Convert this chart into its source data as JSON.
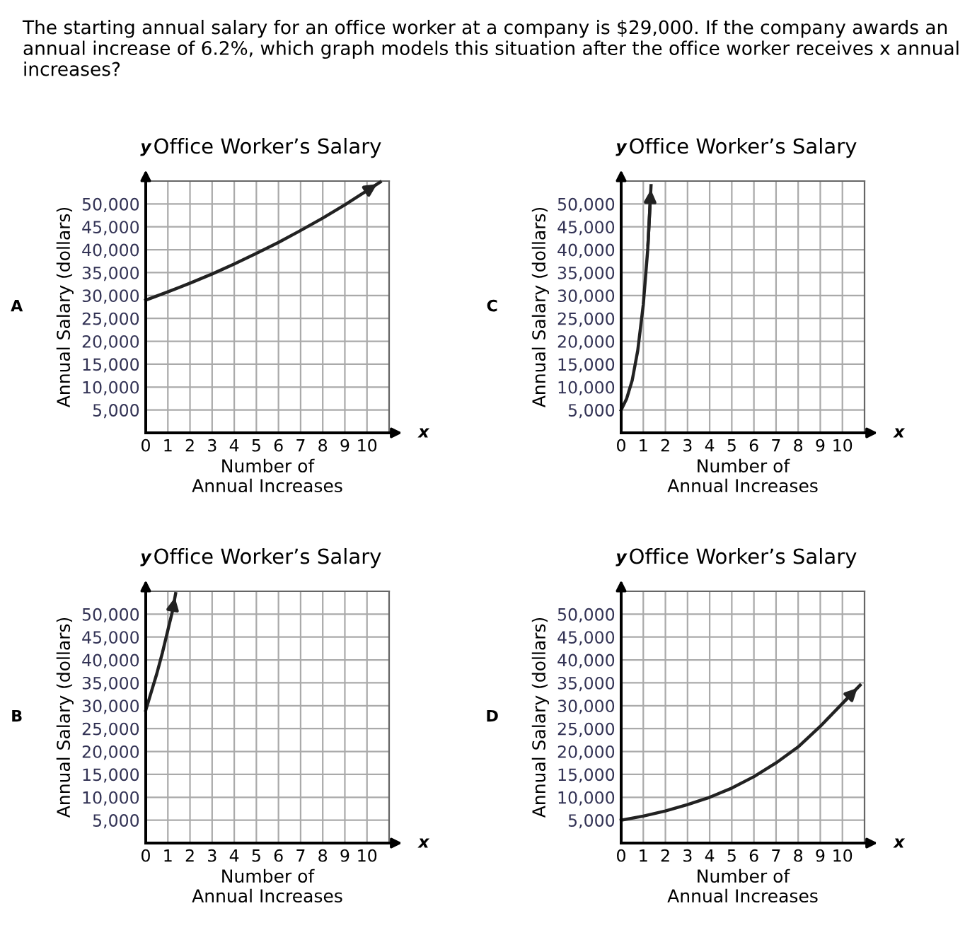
{
  "chart_data": [
    {
      "type": "line",
      "title": "Office Worker’s Salary",
      "xlabel": "Number of\nAnnual Increases",
      "ylabel": "Annual Salary (dollars)",
      "annotations": [
        "The starting annual salary for an office worker at a company is $29,000. If the company awards an annual increase of 6.2%, which graph models this situation after the office worker receives x annual increases?",
        "A",
        "y",
        "x"
      ],
      "series": [
        {
          "color": "#222222",
          "x": [
            0,
            1,
            2,
            3,
            4,
            5,
            6,
            7,
            8,
            9,
            10,
            10.6
          ],
          "values": [
            29000,
            30800,
            32700,
            34700,
            36900,
            39200,
            41600,
            44200,
            46900,
            49800,
            52900,
            54800
          ]
        }
      ],
      "xlim": [
        0,
        11
      ],
      "ylim": [
        0,
        55000
      ],
      "xticks": [
        0,
        1,
        2,
        3,
        4,
        5,
        6,
        7,
        8,
        9,
        10
      ],
      "yticks": [
        {
          "value": 0,
          "label": null
        },
        {
          "value": 5000,
          "label": "5,000"
        },
        {
          "value": 10000,
          "label": "10,000"
        },
        {
          "value": 15000,
          "label": "15,000"
        },
        {
          "value": 20000,
          "label": "20,000"
        },
        {
          "value": 25000,
          "label": "25,000"
        },
        {
          "value": 30000,
          "label": "30,000"
        },
        {
          "value": 35000,
          "label": "35,000"
        },
        {
          "value": 40000,
          "label": "40,000"
        },
        {
          "value": 45000,
          "label": "45,000"
        },
        {
          "value": 50000,
          "label": "50,000"
        }
      ],
      "grid": true,
      "legend": false
    },
    {
      "type": "line",
      "title": "Office Worker’s Salary",
      "xlabel": "Number of\nAnnual Increases",
      "ylabel": "Annual Salary (dollars)",
      "annotations": [
        "C",
        "y",
        "x"
      ],
      "series": [
        {
          "color": "#222222",
          "x": [
            0,
            0.25,
            0.5,
            0.75,
            1.0,
            1.2,
            1.35
          ],
          "values": [
            5000,
            7500,
            11500,
            18000,
            28000,
            40000,
            54000
          ]
        }
      ],
      "xlim": [
        0,
        11
      ],
      "ylim": [
        0,
        55000
      ],
      "xticks": [
        0,
        1,
        2,
        3,
        4,
        5,
        6,
        7,
        8,
        9,
        10
      ],
      "yticks": [
        {
          "value": 0,
          "label": null
        },
        {
          "value": 5000,
          "label": "5,000"
        },
        {
          "value": 10000,
          "label": "10,000"
        },
        {
          "value": 15000,
          "label": "15,000"
        },
        {
          "value": 20000,
          "label": "20,000"
        },
        {
          "value": 25000,
          "label": "25,000"
        },
        {
          "value": 30000,
          "label": "30,000"
        },
        {
          "value": 35000,
          "label": "35,000"
        },
        {
          "value": 40000,
          "label": "40,000"
        },
        {
          "value": 45000,
          "label": "45,000"
        },
        {
          "value": 50000,
          "label": "50,000"
        }
      ],
      "grid": true,
      "legend": false
    },
    {
      "type": "line",
      "title": "Office Worker’s Salary",
      "xlabel": "Number of\nAnnual Increases",
      "ylabel": "Annual Salary (dollars)",
      "annotations": [
        "B",
        "y",
        "x"
      ],
      "series": [
        {
          "color": "#222222",
          "x": [
            0,
            0.25,
            0.5,
            0.75,
            1.0,
            1.2,
            1.35
          ],
          "values": [
            29000,
            33000,
            37000,
            41500,
            46500,
            50500,
            54500
          ]
        }
      ],
      "xlim": [
        0,
        11
      ],
      "ylim": [
        0,
        55000
      ],
      "xticks": [
        0,
        1,
        2,
        3,
        4,
        5,
        6,
        7,
        8,
        9,
        10
      ],
      "yticks": [
        {
          "value": 0,
          "label": null
        },
        {
          "value": 5000,
          "label": "5,000"
        },
        {
          "value": 10000,
          "label": "10,000"
        },
        {
          "value": 15000,
          "label": "15,000"
        },
        {
          "value": 20000,
          "label": "20,000"
        },
        {
          "value": 25000,
          "label": "25,000"
        },
        {
          "value": 30000,
          "label": "30,000"
        },
        {
          "value": 35000,
          "label": "35,000"
        },
        {
          "value": 40000,
          "label": "40,000"
        },
        {
          "value": 45000,
          "label": "45,000"
        },
        {
          "value": 50000,
          "label": "50,000"
        }
      ],
      "grid": true,
      "legend": false
    },
    {
      "type": "line",
      "title": "Office Worker’s Salary",
      "xlabel": "Number of\nAnnual Increases",
      "ylabel": "Annual Salary (dollars)",
      "annotations": [
        "D",
        "y",
        "x"
      ],
      "series": [
        {
          "color": "#222222",
          "x": [
            0,
            1,
            2,
            3,
            4,
            5,
            6,
            7,
            8,
            9,
            10,
            10.8
          ],
          "values": [
            5000,
            5900,
            7000,
            8400,
            10000,
            12000,
            14500,
            17500,
            21000,
            25500,
            30500,
            34500
          ]
        }
      ],
      "xlim": [
        0,
        11
      ],
      "ylim": [
        0,
        55000
      ],
      "xticks": [
        0,
        1,
        2,
        3,
        4,
        5,
        6,
        7,
        8,
        9,
        10
      ],
      "yticks": [
        {
          "value": 0,
          "label": null
        },
        {
          "value": 5000,
          "label": "5,000"
        },
        {
          "value": 10000,
          "label": "10,000"
        },
        {
          "value": 15000,
          "label": "15,000"
        },
        {
          "value": 20000,
          "label": "20,000"
        },
        {
          "value": 25000,
          "label": "25,000"
        },
        {
          "value": 30000,
          "label": "30,000"
        },
        {
          "value": 35000,
          "label": "35,000"
        },
        {
          "value": 40000,
          "label": "40,000"
        },
        {
          "value": 45000,
          "label": "45,000"
        },
        {
          "value": 50000,
          "label": "50,000"
        }
      ],
      "grid": true,
      "legend": false
    }
  ]
}
